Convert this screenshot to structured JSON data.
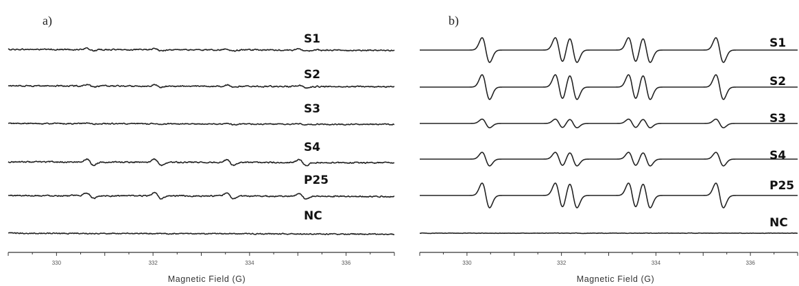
{
  "figure": {
    "panels": [
      {
        "letter": "a)",
        "xlabel": "Magnetic Field (G)",
        "ticks": [
          330,
          332,
          334,
          336
        ],
        "traces": [
          {
            "label": "S1",
            "amplitude": 0.1,
            "noise": 0.09
          },
          {
            "label": "S2",
            "amplitude": 0.12,
            "noise": 0.09
          },
          {
            "label": "S3",
            "amplitude": 0.05,
            "noise": 0.08
          },
          {
            "label": "S4",
            "amplitude": 0.28,
            "noise": 0.09
          },
          {
            "label": "P25",
            "amplitude": 0.26,
            "noise": 0.09
          },
          {
            "label": "NC",
            "amplitude": 0.0,
            "noise": 0.08
          }
        ]
      },
      {
        "letter": "b)",
        "xlabel": "Magnetic Field (G)",
        "ticks": [
          330,
          332,
          334,
          336
        ],
        "traces": [
          {
            "label": "S1",
            "amplitude": 1.0,
            "noise": 0.0
          },
          {
            "label": "S2",
            "amplitude": 1.0,
            "noise": 0.0
          },
          {
            "label": "S3",
            "amplitude": 0.35,
            "noise": 0.0
          },
          {
            "label": "S4",
            "amplitude": 0.55,
            "noise": 0.0
          },
          {
            "label": "P25",
            "amplitude": 1.0,
            "noise": 0.0
          },
          {
            "label": "NC",
            "amplitude": 0.0,
            "noise": 0.03
          }
        ]
      }
    ]
  },
  "chart_data": [
    {
      "type": "line",
      "title": "",
      "xlabel": "Magnetic Field (G)",
      "ylabel": "",
      "xlim": [
        329,
        337
      ],
      "xticks": [
        330,
        332,
        334,
        336
      ],
      "grid": false,
      "signal_lines_G": [
        330.7,
        332.1,
        333.6,
        335.1
      ],
      "series": [
        {
          "name": "S1",
          "relative_amplitude": 0.1
        },
        {
          "name": "S2",
          "relative_amplitude": 0.12
        },
        {
          "name": "S3",
          "relative_amplitude": 0.05
        },
        {
          "name": "S4",
          "relative_amplitude": 0.28
        },
        {
          "name": "P25",
          "relative_amplitude": 0.26
        },
        {
          "name": "NC",
          "relative_amplitude": 0.0
        }
      ]
    },
    {
      "type": "line",
      "title": "",
      "xlabel": "Magnetic Field (G)",
      "ylabel": "",
      "xlim": [
        329,
        337
      ],
      "xticks": [
        330,
        332,
        334,
        336
      ],
      "grid": false,
      "signal_lines_G": [
        330.4,
        331.95,
        332.25,
        333.5,
        333.8,
        335.35
      ],
      "series": [
        {
          "name": "S1",
          "relative_amplitude": 1.0
        },
        {
          "name": "S2",
          "relative_amplitude": 1.0
        },
        {
          "name": "S3",
          "relative_amplitude": 0.35
        },
        {
          "name": "S4",
          "relative_amplitude": 0.55
        },
        {
          "name": "P25",
          "relative_amplitude": 1.0
        },
        {
          "name": "NC",
          "relative_amplitude": 0.0
        }
      ]
    }
  ]
}
